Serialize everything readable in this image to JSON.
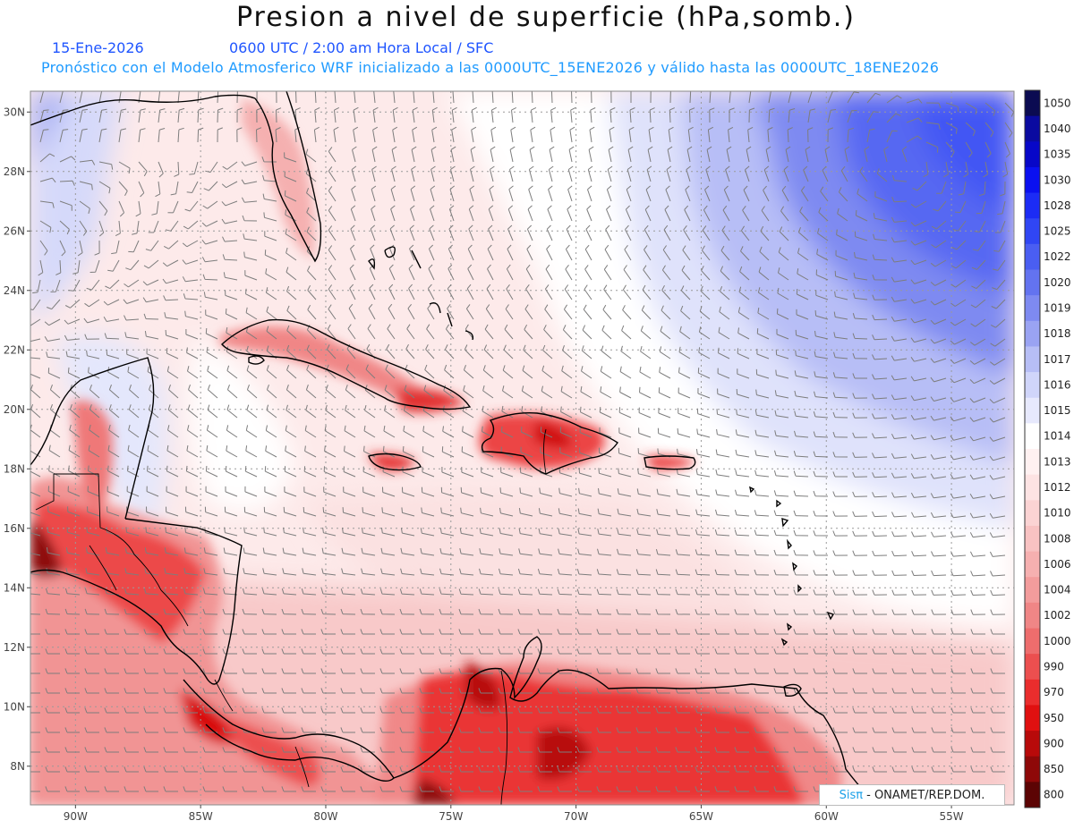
{
  "header": {
    "title": "Presion a nivel de superficie (hPa,somb.)",
    "date": "15-Ene-2026",
    "time_info": "0600 UTC / 2:00 am Hora Local / SFC",
    "model_info": "Pronóstico con el Modelo Atmosferico WRF inicializado a las 0000UTC_15ENE2026 y válido hasta las  0000UTC_18ENE2026"
  },
  "axes": {
    "lat_labels": [
      "30N",
      "28N",
      "26N",
      "24N",
      "22N",
      "20N",
      "18N",
      "16N",
      "14N",
      "12N",
      "10N",
      "8N"
    ],
    "lon_labels": [
      "90W",
      "85W",
      "80W",
      "75W",
      "70W",
      "65W",
      "60W",
      "55W"
    ]
  },
  "colorbar": {
    "levels": [
      "1050",
      "1040",
      "1035",
      "1030",
      "1028",
      "1025",
      "1022",
      "1020",
      "1019",
      "1018",
      "1017",
      "1016",
      "1015",
      "1014",
      "1013",
      "1012",
      "1010",
      "1008",
      "1006",
      "1004",
      "1002",
      "1000",
      "990",
      "970",
      "950",
      "900",
      "850",
      "800"
    ],
    "colors": [
      "#0b0b52",
      "#0a0aa0",
      "#0707c8",
      "#0a10f0",
      "#1c2cf5",
      "#3046f4",
      "#4a5ef2",
      "#6373f0",
      "#7e8af1",
      "#9aa3f3",
      "#b7bef6",
      "#d0d5fa",
      "#e7e9fd",
      "#ffffff",
      "#fff1f1",
      "#fde3e3",
      "#fbd3d3",
      "#f8c2c2",
      "#f6b0b0",
      "#f39c9c",
      "#f08686",
      "#ee6d6d",
      "#ec4f4f",
      "#ea2d2d",
      "#e01010",
      "#b80a0a",
      "#8e0808",
      "#5c0404"
    ]
  },
  "map": {
    "description_colors": {
      "high_pressure": "#4a5ef2",
      "low_pressure_land": "#e01010",
      "neutral": "#ffffff",
      "coastline": "#000000",
      "wind_barb": "#777777",
      "grid": "#9a9a9a"
    }
  },
  "credit": {
    "brand": "Sisπ",
    "text": "- ONAMET/REP.DOM."
  }
}
